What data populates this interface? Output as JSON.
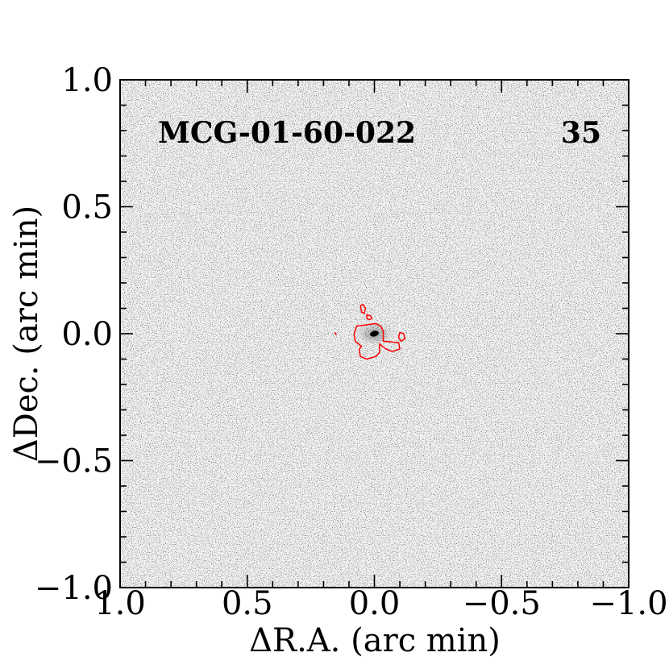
{
  "chart_data": {
    "type": "heatmap",
    "colormap": "gray_r",
    "contour_color": "#ff0000",
    "xlabel": "ΔR.A. (arc min)",
    "ylabel": "ΔDec. (arc min)",
    "xlim": [
      1.0,
      -1.0
    ],
    "ylim": [
      -1.0,
      1.0
    ],
    "x_ticks": [
      {
        "value": 1.0,
        "label": "1.0"
      },
      {
        "value": 0.5,
        "label": "0.5"
      },
      {
        "value": 0.0,
        "label": "0.0"
      },
      {
        "value": -0.5,
        "label": "−0.5"
      },
      {
        "value": -1.0,
        "label": "−1.0"
      }
    ],
    "y_ticks": [
      {
        "value": 1.0,
        "label": "1.0"
      },
      {
        "value": 0.5,
        "label": "0.5"
      },
      {
        "value": 0.0,
        "label": "0.0"
      },
      {
        "value": -0.5,
        "label": "−0.5"
      },
      {
        "value": -1.0,
        "label": "−1.0"
      }
    ],
    "minor_tick_step": 0.1,
    "annotations": {
      "object_name": "MCG-01-60-022",
      "panel_number": "35"
    },
    "source": {
      "x": 0.0,
      "y": 0.0,
      "major_axis": 0.035,
      "minor_axis": 0.022
    },
    "contours": [
      {
        "name": "main",
        "points": [
          [
            0.07,
            0.03
          ],
          [
            0.03,
            0.035
          ],
          [
            -0.005,
            0.04
          ],
          [
            -0.025,
            0.03
          ],
          [
            -0.035,
            0.01
          ],
          [
            -0.035,
            -0.03
          ],
          [
            -0.095,
            -0.035
          ],
          [
            -0.1,
            -0.06
          ],
          [
            -0.07,
            -0.07
          ],
          [
            -0.045,
            -0.06
          ],
          [
            -0.02,
            -0.04
          ],
          [
            -0.02,
            -0.075
          ],
          [
            -0.005,
            -0.09
          ],
          [
            0.03,
            -0.1
          ],
          [
            0.055,
            -0.09
          ],
          [
            0.06,
            -0.06
          ],
          [
            0.05,
            -0.05
          ],
          [
            0.075,
            -0.03
          ],
          [
            0.08,
            0.0
          ]
        ]
      },
      {
        "name": "north-blob",
        "points": [
          [
            0.055,
            0.11
          ],
          [
            0.045,
            0.115
          ],
          [
            0.035,
            0.1
          ],
          [
            0.04,
            0.08
          ],
          [
            0.05,
            0.085
          ]
        ]
      },
      {
        "name": "ne-small",
        "points": [
          [
            0.03,
            0.075
          ],
          [
            0.015,
            0.07
          ],
          [
            0.01,
            0.06
          ],
          [
            0.02,
            0.055
          ],
          [
            0.03,
            0.06
          ]
        ]
      },
      {
        "name": "east-blob",
        "points": [
          [
            -0.1,
            0.005
          ],
          [
            -0.115,
            0.0
          ],
          [
            -0.12,
            -0.02
          ],
          [
            -0.105,
            -0.03
          ],
          [
            -0.095,
            -0.015
          ]
        ]
      },
      {
        "name": "west-dot",
        "points": [
          [
            0.155,
            0.005
          ],
          [
            0.15,
            -0.005
          ]
        ]
      }
    ]
  }
}
